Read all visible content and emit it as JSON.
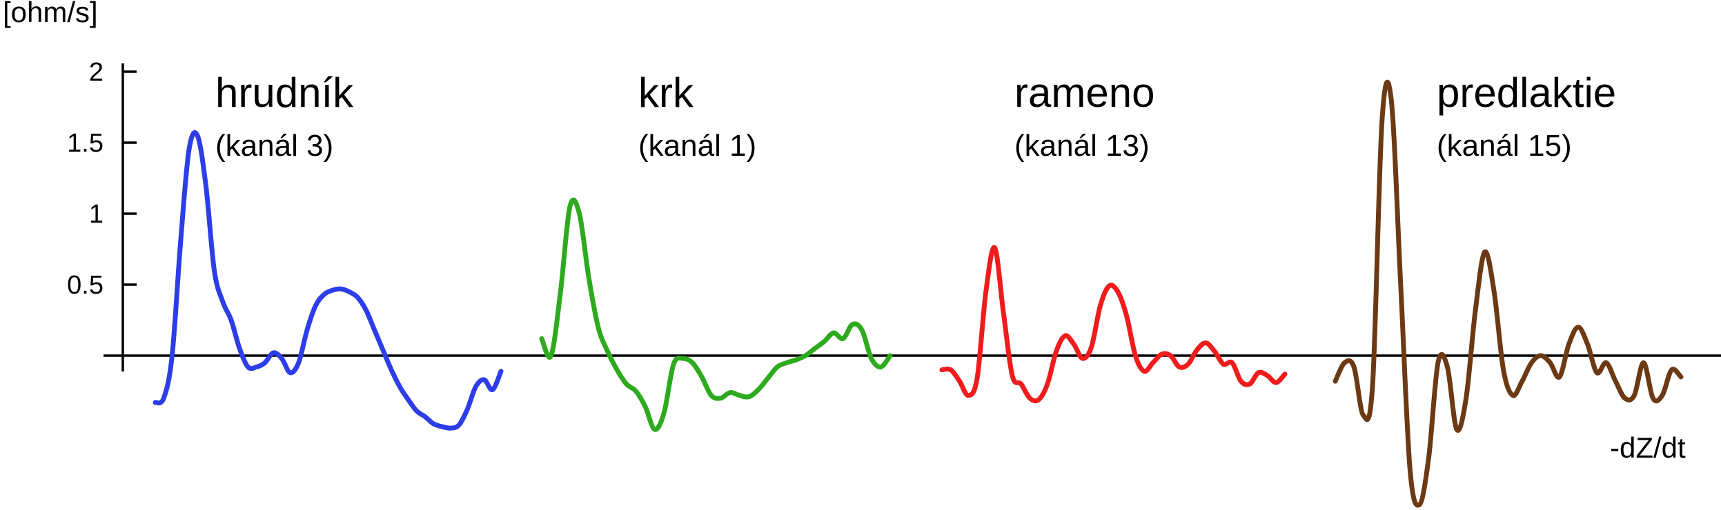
{
  "chart_data": {
    "type": "line",
    "ylabel": "[ohm/s]",
    "xlabel": "-dZ/dt",
    "y_ticks": [
      {
        "value": 2,
        "label": "2"
      },
      {
        "value": 1.5,
        "label": "1.5"
      },
      {
        "value": 1,
        "label": "1"
      },
      {
        "value": 0.5,
        "label": "0.5"
      }
    ],
    "ylim": [
      -1.05,
      2.2
    ],
    "grid": false,
    "series": [
      {
        "name": "hrudník",
        "subtitle": "(kanál 3)",
        "color": "#2d3ee8",
        "values": [
          -0.33,
          -0.3,
          0,
          0.8,
          1.45,
          1.55,
          1.2,
          0.6,
          0.38,
          0.25,
          0.05,
          -0.08,
          -0.08,
          -0.05,
          0.02,
          -0.02,
          -0.12,
          -0.05,
          0.18,
          0.35,
          0.43,
          0.46,
          0.47,
          0.45,
          0.41,
          0.32,
          0.18,
          0.04,
          -0.1,
          -0.22,
          -0.31,
          -0.39,
          -0.43,
          -0.48,
          -0.5,
          -0.51,
          -0.49,
          -0.38,
          -0.22,
          -0.17,
          -0.24,
          -0.11
        ]
      },
      {
        "name": "krk",
        "subtitle": "(kanál 1)",
        "color": "#2eaa1e",
        "values": [
          0.12,
          0,
          0.45,
          1.05,
          1.0,
          0.55,
          0.2,
          0.03,
          -0.1,
          -0.2,
          -0.25,
          -0.36,
          -0.52,
          -0.4,
          -0.06,
          -0.02,
          -0.05,
          -0.15,
          -0.28,
          -0.3,
          -0.26,
          -0.28,
          -0.29,
          -0.24,
          -0.16,
          -0.08,
          -0.05,
          -0.03,
          0,
          0.05,
          0.1,
          0.16,
          0.12,
          0.22,
          0.18,
          -0.02,
          -0.08,
          0
        ]
      },
      {
        "name": "rameno",
        "subtitle": "(kanál 13)",
        "color": "#f01c1c",
        "values": [
          -0.1,
          -0.1,
          -0.18,
          -0.28,
          -0.16,
          0.45,
          0.76,
          0.3,
          -0.14,
          -0.2,
          -0.3,
          -0.31,
          -0.2,
          0.03,
          0.14,
          0.08,
          -0.02,
          0.06,
          0.35,
          0.49,
          0.45,
          0.28,
          0.0,
          -0.11,
          -0.05,
          0.01,
          0,
          -0.08,
          -0.06,
          0.04,
          0.09,
          0.03,
          -0.06,
          -0.05,
          -0.18,
          -0.2,
          -0.12,
          -0.14,
          -0.19,
          -0.13
        ]
      },
      {
        "name": "predlaktie",
        "subtitle": "(kanál 15)",
        "color": "#6b3a14",
        "values": [
          -0.18,
          -0.05,
          -0.08,
          -0.42,
          -0.2,
          1.65,
          1.8,
          0.5,
          -0.8,
          -1.05,
          -0.72,
          -0.05,
          -0.08,
          -0.52,
          -0.3,
          0.32,
          0.73,
          0.45,
          -0.1,
          -0.28,
          -0.18,
          -0.05,
          0,
          -0.05,
          -0.15,
          0.08,
          0.2,
          0.08,
          -0.12,
          -0.05,
          -0.18,
          -0.3,
          -0.28,
          -0.05,
          -0.3,
          -0.28,
          -0.1,
          -0.15
        ]
      }
    ]
  }
}
